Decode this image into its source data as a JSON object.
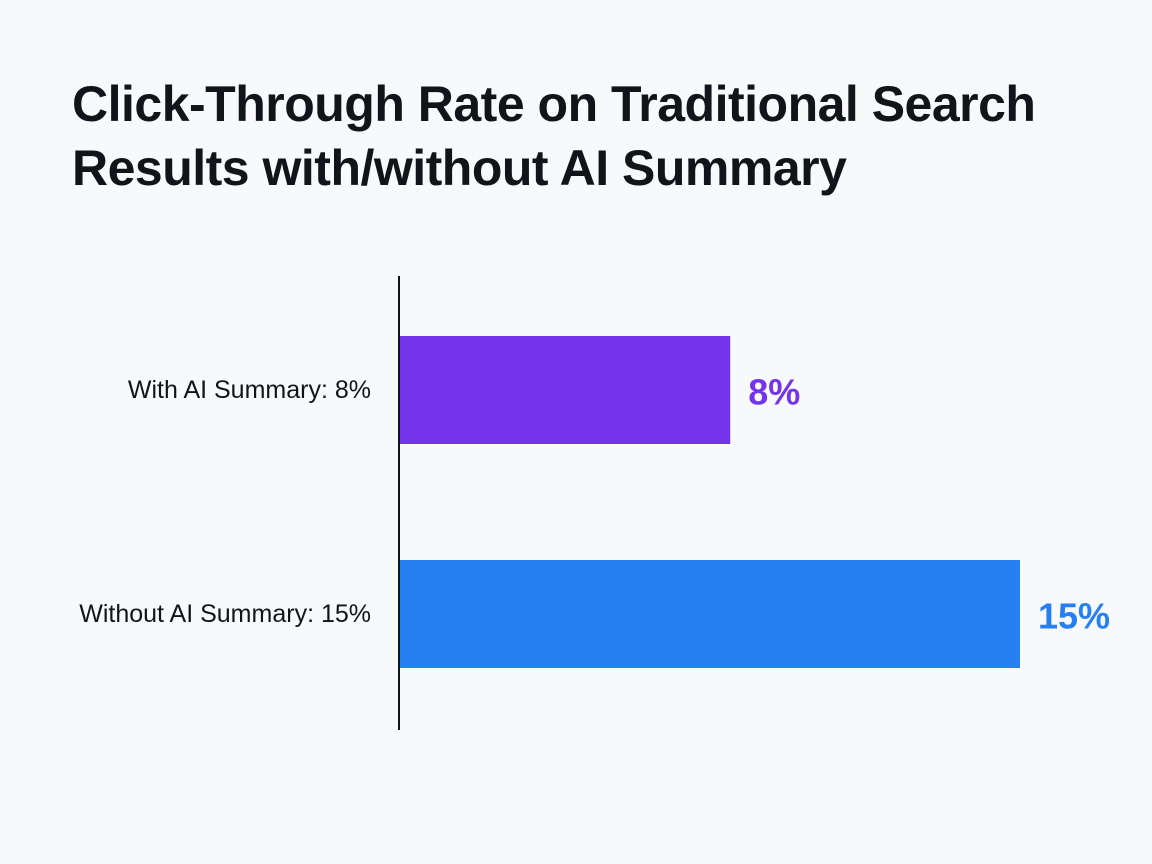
{
  "title": "Click-Through Rate on Traditional Search Results with/without AI Summary",
  "chart_data": {
    "type": "bar",
    "orientation": "horizontal",
    "title": "Click-Through Rate on Traditional Search Results with/without AI Summary",
    "categories": [
      "With AI Summary: 8%",
      "Without AI Summary: 15%"
    ],
    "values": [
      8,
      15
    ],
    "data_labels": [
      "8%",
      "15%"
    ],
    "colors": [
      "#7434ec",
      "#2680f2"
    ],
    "xlim": [
      0,
      15
    ],
    "grid": false,
    "legend": "none",
    "xlabel": "",
    "ylabel": ""
  }
}
